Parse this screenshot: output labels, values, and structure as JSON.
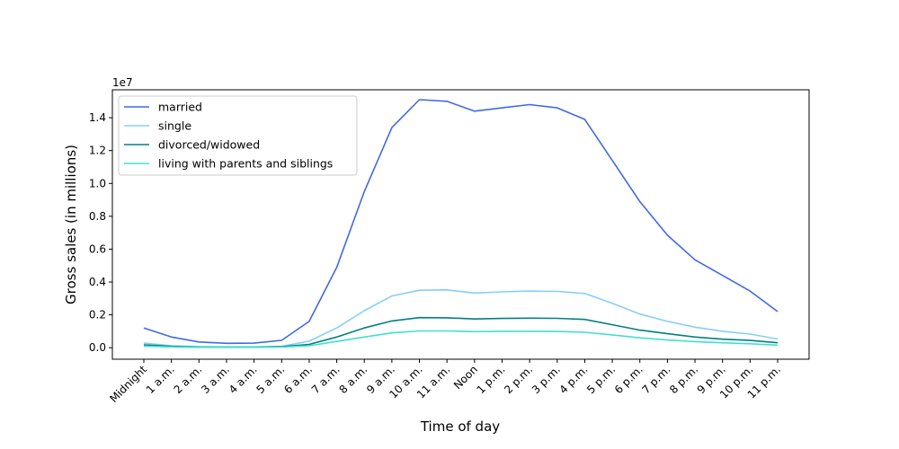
{
  "chart_data": {
    "type": "line",
    "xlabel": "Time of day",
    "ylabel": "Gross sales (in millions)",
    "y_multiplier_label": "1e7",
    "ylim": [
      -0.07,
      1.57
    ],
    "yticks": [
      0.0,
      0.2,
      0.4,
      0.6,
      0.8,
      1.0,
      1.2,
      1.4
    ],
    "ytick_labels": [
      "0.0",
      "0.2",
      "0.4",
      "0.6",
      "0.8",
      "1.0",
      "1.2",
      "1.4"
    ],
    "legend_position": "top-left",
    "grid": false,
    "categories": [
      "Midnight",
      "1 a.m.",
      "2 a.m.",
      "3 a.m.",
      "4 a.m.",
      "5 a.m.",
      "6 a.m.",
      "7 a.m.",
      "8 a.m.",
      "9 a.m.",
      "10 a.m.",
      "11 a.m.",
      "Noon",
      "1 p.m.",
      "2 p.m.",
      "3 p.m.",
      "4 p.m.",
      "5 p.m.",
      "6 p.m.",
      "7 p.m.",
      "8 p.m.",
      "9 p.m.",
      "10 p.m.",
      "11 p.m."
    ],
    "series": [
      {
        "name": "married",
        "color": "#4169e1",
        "values": [
          0.12,
          0.065,
          0.035,
          0.027,
          0.028,
          0.045,
          0.16,
          0.49,
          0.95,
          1.34,
          1.51,
          1.5,
          1.44,
          1.46,
          1.48,
          1.46,
          1.39,
          1.14,
          0.89,
          0.685,
          0.535,
          0.44,
          0.345,
          0.22
        ]
      },
      {
        "name": "single",
        "color": "#87cefa",
        "values": [
          0.028,
          0.012,
          0.006,
          0.004,
          0.004,
          0.008,
          0.04,
          0.12,
          0.225,
          0.315,
          0.35,
          0.352,
          0.333,
          0.34,
          0.345,
          0.343,
          0.33,
          0.27,
          0.205,
          0.16,
          0.125,
          0.1,
          0.083,
          0.053
        ]
      },
      {
        "name": "divorced/widowed",
        "color": "#008080",
        "values": [
          0.017,
          0.008,
          0.004,
          0.003,
          0.003,
          0.006,
          0.02,
          0.065,
          0.12,
          0.163,
          0.183,
          0.182,
          0.175,
          0.178,
          0.18,
          0.179,
          0.172,
          0.14,
          0.107,
          0.085,
          0.065,
          0.052,
          0.044,
          0.03
        ]
      },
      {
        "name": "living with parents and siblings",
        "color": "#40e0d0",
        "values": [
          0.01,
          0.005,
          0.002,
          0.002,
          0.002,
          0.004,
          0.012,
          0.038,
          0.065,
          0.09,
          0.102,
          0.102,
          0.098,
          0.1,
          0.1,
          0.099,
          0.094,
          0.078,
          0.06,
          0.047,
          0.037,
          0.03,
          0.024,
          0.016
        ]
      }
    ]
  }
}
